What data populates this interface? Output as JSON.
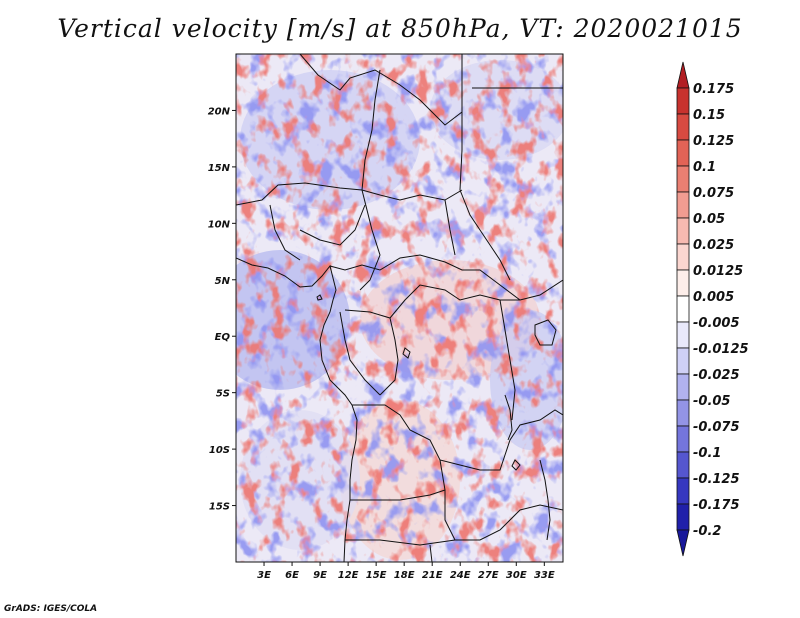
{
  "title": "Vertical velocity [m/s] at 850hPa, VT: 2020021015",
  "credit": "GrADS: IGES/COLA",
  "map": {
    "lon_range": [
      0,
      35
    ],
    "lat_range": [
      -20,
      25
    ],
    "lat_ticks": [
      {
        "value": 20,
        "label": "20N"
      },
      {
        "value": 15,
        "label": "15N"
      },
      {
        "value": 10,
        "label": "10N"
      },
      {
        "value": 5,
        "label": "5N"
      },
      {
        "value": 0,
        "label": "EQ"
      },
      {
        "value": -5,
        "label": "5S"
      },
      {
        "value": -10,
        "label": "10S"
      },
      {
        "value": -15,
        "label": "15S"
      }
    ],
    "lon_ticks": [
      {
        "value": 3,
        "label": "3E"
      },
      {
        "value": 6,
        "label": "6E"
      },
      {
        "value": 9,
        "label": "9E"
      },
      {
        "value": 12,
        "label": "12E"
      },
      {
        "value": 15,
        "label": "15E"
      },
      {
        "value": 18,
        "label": "18E"
      },
      {
        "value": 21,
        "label": "21E"
      },
      {
        "value": 24,
        "label": "24E"
      },
      {
        "value": 27,
        "label": "27E"
      },
      {
        "value": 30,
        "label": "30E"
      },
      {
        "value": 33,
        "label": "33E"
      }
    ]
  },
  "colorbar": {
    "levels": [
      "0.175",
      "0.15",
      "0.125",
      "0.1",
      "0.075",
      "0.05",
      "0.025",
      "0.0125",
      "0.005",
      "-0.005",
      "-0.0125",
      "-0.025",
      "-0.05",
      "-0.075",
      "-0.1",
      "-0.125",
      "-0.175",
      "-0.2"
    ],
    "colors": [
      "#b21e23",
      "#c8322e",
      "#d84a41",
      "#e26356",
      "#ea7f72",
      "#f19c91",
      "#f7bab1",
      "#fbd6d0",
      "#fdeeea",
      "#ffffff",
      "#e9e9fb",
      "#cfd0f6",
      "#b1b2ef",
      "#9394e6",
      "#7475dc",
      "#5556cf",
      "#3637c0",
      "#2020aa",
      "#18189a"
    ]
  }
}
